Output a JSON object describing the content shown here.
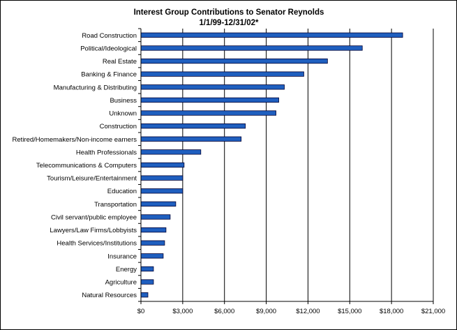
{
  "chart_data": {
    "type": "bar",
    "orientation": "horizontal",
    "title": "Interest Group Contributions to Senator Reynolds",
    "subtitle": "1/1/99-12/31/02*",
    "categories": [
      "Road Construction",
      "Political/Ideological",
      "Real Estate",
      "Banking & Finance",
      "Manufacturing & Distributing",
      "Business",
      "Unknown",
      "Construction",
      "Retired/Homemakers/Non-income earners",
      "Health Professionals",
      "Telecommunications & Computers",
      "Tourism/Leisure/Entertainment",
      "Education",
      "Transportation",
      "Civil servant/public employee",
      "Lawyers/Law Firms/Lobbyists",
      "Health Services/Institutions",
      "Insurance",
      "Energy",
      "Agriculture",
      "Natural Resources"
    ],
    "values": [
      18800,
      15900,
      13400,
      11700,
      10300,
      9900,
      9700,
      7500,
      7200,
      4300,
      3100,
      3000,
      3000,
      2500,
      2100,
      1800,
      1700,
      1600,
      900,
      900,
      500
    ],
    "xlim": [
      0,
      21000
    ],
    "xticks": [
      0,
      3000,
      6000,
      9000,
      12000,
      15000,
      18000,
      21000
    ],
    "xtick_labels": [
      "$0",
      "$3,000",
      "$6,000",
      "$9,000",
      "$12,000",
      "$15,000",
      "$18,000",
      "$21,000"
    ],
    "xlabel": "",
    "ylabel": "",
    "grid": "vertical major gridlines",
    "legend": "none",
    "bar_color": "#1f5fbf",
    "bar_edge_color": "#000033"
  }
}
